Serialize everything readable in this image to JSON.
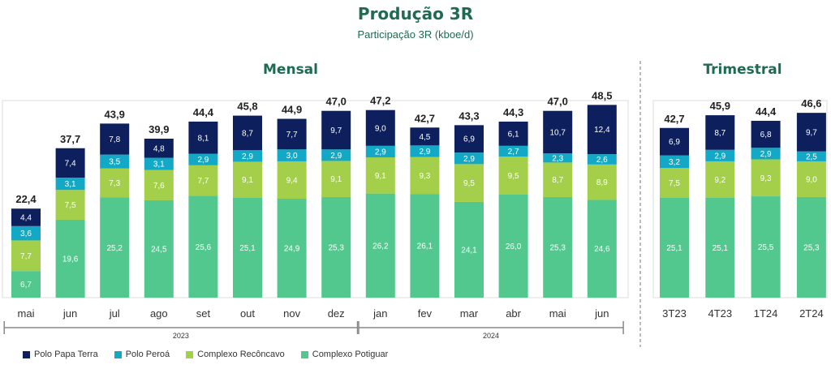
{
  "title": "Produção 3R",
  "subtitle": "Participação 3R (kboe/d)",
  "colors": {
    "title": "#1e6b52",
    "papa_terra": "#0d1f5c",
    "peroa": "#13a9c6",
    "reconcavo": "#a4cf4a",
    "potiguar": "#52c88f"
  },
  "chart_data": {
    "type": "bar",
    "stacked": true,
    "grid": false,
    "legend_position": "bottom-left",
    "sections": {
      "monthly": {
        "title": "Mensal",
        "categories": [
          "mai",
          "jun",
          "jul",
          "ago",
          "set",
          "out",
          "nov",
          "dez",
          "jan",
          "fev",
          "mar",
          "abr",
          "mai",
          "jun"
        ],
        "year_groups": [
          {
            "label": "2023",
            "start": 0,
            "end": 7
          },
          {
            "label": "2024",
            "start": 8,
            "end": 13
          }
        ],
        "totals": [
          "22,4",
          "37,7",
          "43,9",
          "39,9",
          "44,4",
          "45,8",
          "44,9",
          "47,0",
          "47,2",
          "42,7",
          "43,3",
          "44,3",
          "47,0",
          "48,5"
        ],
        "series": [
          {
            "name": "Complexo Potiguar",
            "values": [
              6.7,
              19.6,
              25.2,
              24.5,
              25.6,
              25.1,
              24.9,
              25.3,
              26.2,
              26.1,
              24.1,
              26.0,
              25.3,
              24.6
            ],
            "labels": [
              "6,7",
              "19,6",
              "25,2",
              "24,5",
              "25,6",
              "25,1",
              "24,9",
              "25,3",
              "26,2",
              "26,1",
              "24,1",
              "26,0",
              "25,3",
              "24,6"
            ]
          },
          {
            "name": "Complexo Recôncavo",
            "values": [
              7.7,
              7.5,
              7.3,
              7.6,
              7.7,
              9.1,
              9.4,
              9.1,
              9.1,
              9.3,
              9.5,
              9.5,
              8.7,
              8.9
            ],
            "labels": [
              "7,7",
              "7,5",
              "7,3",
              "7,6",
              "7,7",
              "9,1",
              "9,4",
              "9,1",
              "9,1",
              "9,3",
              "9,5",
              "9,5",
              "8,7",
              "8,9"
            ]
          },
          {
            "name": "Polo Peroá",
            "values": [
              3.6,
              3.1,
              3.5,
              3.1,
              2.9,
              2.9,
              3.0,
              2.9,
              2.9,
              2.9,
              2.9,
              2.7,
              2.3,
              2.6
            ],
            "labels": [
              "3,6",
              "3,1",
              "3,5",
              "3,1",
              "2,9",
              "2,9",
              "3,0",
              "2,9",
              "2,9",
              "2,9",
              "2,9",
              "2,7",
              "2,3",
              "2,6"
            ]
          },
          {
            "name": "Polo Papa Terra",
            "values": [
              4.4,
              7.4,
              7.8,
              4.8,
              8.1,
              8.7,
              7.7,
              9.7,
              9.0,
              4.5,
              6.9,
              6.1,
              10.7,
              12.4
            ],
            "labels": [
              "4,4",
              "7,4",
              "7,8",
              "4,8",
              "8,1",
              "8,7",
              "7,7",
              "9,7",
              "9,0",
              "4,5",
              "6,9",
              "6,1",
              "10,7",
              "12,4"
            ]
          }
        ]
      },
      "quarterly": {
        "title": "Trimestral",
        "categories": [
          "3T23",
          "4T23",
          "1T24",
          "2T24"
        ],
        "totals": [
          "42,7",
          "45,9",
          "44,4",
          "46,6"
        ],
        "series": [
          {
            "name": "Complexo Potiguar",
            "values": [
              25.1,
              25.1,
              25.5,
              25.3
            ],
            "labels": [
              "25,1",
              "25,1",
              "25,5",
              "25,3"
            ]
          },
          {
            "name": "Complexo Recôncavo",
            "values": [
              7.5,
              9.2,
              9.3,
              9.0
            ],
            "labels": [
              "7,5",
              "9,2",
              "9,3",
              "9,0"
            ]
          },
          {
            "name": "Polo Peroá",
            "values": [
              3.2,
              2.9,
              2.9,
              2.5
            ],
            "labels": [
              "3,2",
              "2,9",
              "2,9",
              "2,5"
            ]
          },
          {
            "name": "Polo Papa Terra",
            "values": [
              6.9,
              8.7,
              6.8,
              9.7
            ],
            "labels": [
              "6,9",
              "8,7",
              "6,8",
              "9,7"
            ]
          }
        ]
      }
    },
    "legend": [
      "Polo Papa Terra",
      "Polo Peroá",
      "Complexo Recôncavo",
      "Complexo Potiguar"
    ]
  }
}
